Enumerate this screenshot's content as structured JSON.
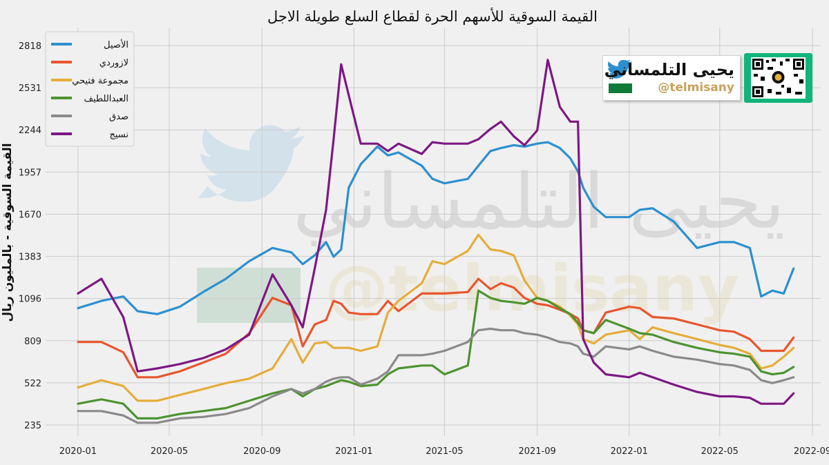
{
  "chart_data": {
    "type": "line",
    "title": "القيمة السوقية للأسهم الحرة لقطاع السلع طويلة الاجل",
    "ylabel": "القيمة السوقية - بالمليون ريال",
    "xlabel": "",
    "ylim": [
      160,
      2940
    ],
    "y_ticks": [
      235,
      522,
      809,
      1096,
      1383,
      1670,
      1957,
      2244,
      2531,
      2818
    ],
    "x_ticks": [
      "2020-01",
      "2020-05",
      "2020-09",
      "2021-01",
      "2021-05",
      "2021-09",
      "2022-01",
      "2022-05",
      "2022-09"
    ],
    "x_range": [
      "2019-11-19",
      "2022-09-12"
    ],
    "grid": true,
    "legend_position": "top-left",
    "x": [
      "2020-01-01",
      "2020-02-01",
      "2020-03-01",
      "2020-03-20",
      "2020-04-15",
      "2020-05-15",
      "2020-06-15",
      "2020-07-15",
      "2020-08-15",
      "2020-09-15",
      "2020-10-10",
      "2020-10-25",
      "2020-11-10",
      "2020-11-25",
      "2020-12-05",
      "2020-12-15",
      "2020-12-25",
      "2021-01-10",
      "2021-02-01",
      "2021-02-15",
      "2021-03-01",
      "2021-04-01",
      "2021-04-15",
      "2021-05-01",
      "2021-06-01",
      "2021-06-15",
      "2021-07-01",
      "2021-07-15",
      "2021-08-01",
      "2021-08-15",
      "2021-09-01",
      "2021-09-15",
      "2021-10-01",
      "2021-10-15",
      "2021-10-25",
      "2021-11-01",
      "2021-11-15",
      "2021-12-01",
      "2022-01-01",
      "2022-01-15",
      "2022-02-01",
      "2022-03-01",
      "2022-04-01",
      "2022-05-01",
      "2022-05-20",
      "2022-06-10",
      "2022-06-25",
      "2022-07-10",
      "2022-07-25",
      "2022-08-07"
    ],
    "series": [
      {
        "name": "الأصيل",
        "color": "#2c8fcf",
        "values": [
          1030,
          1080,
          1110,
          1010,
          990,
          1040,
          1140,
          1230,
          1350,
          1440,
          1410,
          1330,
          1390,
          1480,
          1380,
          1430,
          1850,
          2010,
          2130,
          2070,
          2090,
          2000,
          1910,
          1880,
          1910,
          2000,
          2100,
          2120,
          2140,
          2130,
          2150,
          2160,
          2120,
          2050,
          1960,
          1850,
          1720,
          1650,
          1650,
          1700,
          1710,
          1620,
          1440,
          1480,
          1480,
          1440,
          1110,
          1150,
          1130,
          1300
        ]
      },
      {
        "name": "لازوردي",
        "color": "#e8552f",
        "values": [
          800,
          800,
          730,
          560,
          560,
          600,
          660,
          720,
          860,
          1100,
          1050,
          770,
          920,
          950,
          1080,
          1060,
          1000,
          990,
          990,
          1080,
          1010,
          1130,
          1130,
          1130,
          1140,
          1230,
          1160,
          1200,
          1170,
          1100,
          1060,
          1050,
          1020,
          990,
          960,
          880,
          860,
          1000,
          1040,
          1030,
          970,
          960,
          920,
          880,
          870,
          820,
          740,
          740,
          740,
          830
        ]
      },
      {
        "name": "مجموعة فتيحي",
        "color": "#e5ad3a",
        "values": [
          490,
          540,
          500,
          400,
          400,
          440,
          480,
          520,
          550,
          620,
          820,
          660,
          790,
          800,
          760,
          760,
          760,
          740,
          770,
          1000,
          1080,
          1200,
          1350,
          1330,
          1420,
          1530,
          1430,
          1420,
          1390,
          1220,
          1100,
          1080,
          1040,
          980,
          920,
          820,
          790,
          850,
          880,
          820,
          900,
          860,
          820,
          780,
          760,
          720,
          620,
          640,
          700,
          760
        ]
      },
      {
        "name": "العبداللطيف",
        "color": "#4d9330",
        "values": [
          380,
          410,
          380,
          280,
          280,
          310,
          330,
          350,
          400,
          450,
          480,
          430,
          480,
          500,
          520,
          540,
          530,
          500,
          510,
          580,
          620,
          640,
          640,
          580,
          640,
          1150,
          1100,
          1080,
          1070,
          1060,
          1100,
          1080,
          1030,
          990,
          930,
          880,
          860,
          950,
          890,
          860,
          850,
          800,
          760,
          730,
          720,
          700,
          600,
          580,
          590,
          630
        ]
      },
      {
        "name": "صدق",
        "color": "#8a8a8a",
        "values": [
          330,
          330,
          300,
          250,
          250,
          280,
          290,
          310,
          350,
          430,
          480,
          450,
          480,
          530,
          550,
          560,
          560,
          510,
          550,
          600,
          710,
          710,
          720,
          740,
          800,
          880,
          890,
          880,
          880,
          860,
          850,
          830,
          800,
          790,
          770,
          720,
          700,
          770,
          750,
          770,
          740,
          700,
          680,
          650,
          640,
          610,
          540,
          520,
          540,
          560
        ]
      },
      {
        "name": "نسيج",
        "color": "#7d1882",
        "values": [
          1130,
          1230,
          970,
          600,
          620,
          650,
          690,
          750,
          850,
          1260,
          1050,
          900,
          1300,
          1700,
          2180,
          2690,
          2480,
          2150,
          2150,
          2100,
          2150,
          2080,
          2160,
          2150,
          2150,
          2180,
          2250,
          2300,
          2200,
          2140,
          2240,
          2720,
          2400,
          2300,
          2300,
          820,
          660,
          580,
          560,
          590,
          560,
          510,
          460,
          430,
          430,
          420,
          380,
          380,
          380,
          450
        ]
      }
    ]
  },
  "watermark": {
    "name": "يحيى التلمساني",
    "handle": "@telmisany",
    "icon": "twitter-bird-icon"
  },
  "brand": {
    "name": "يحيى التلمساني",
    "handle": "@telmisany",
    "icon": "twitter-bird-icon",
    "qr_icon": "qr-code-icon"
  }
}
